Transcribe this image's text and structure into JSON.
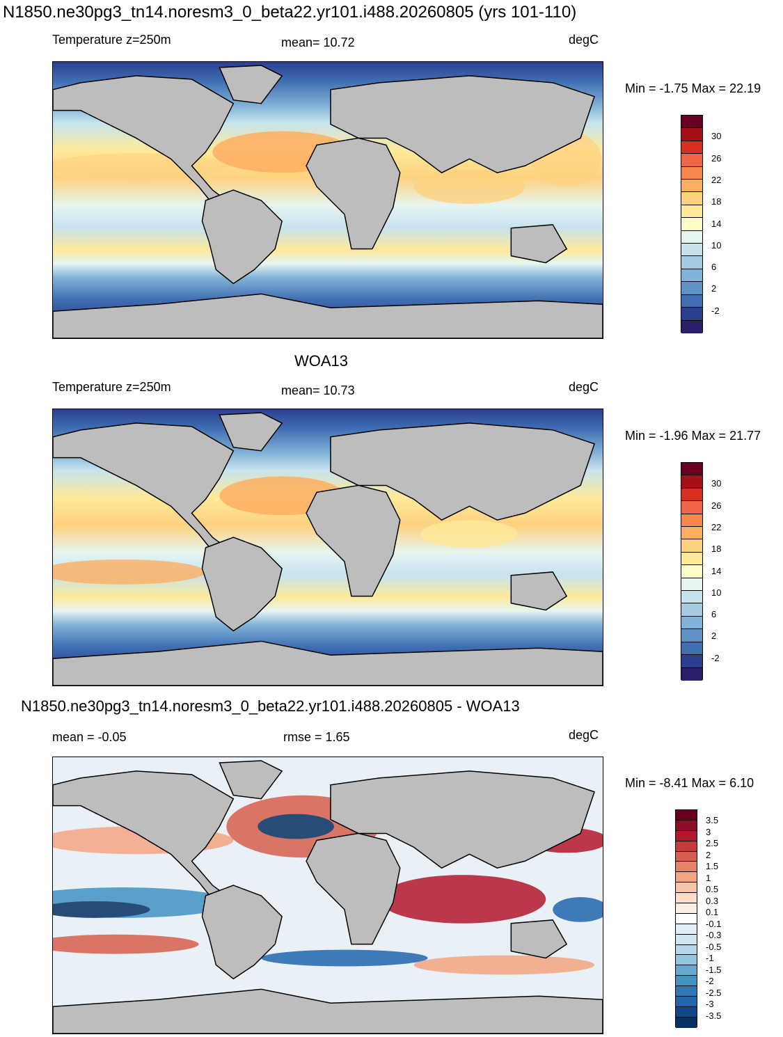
{
  "page_title": "N1850.ne30pg3_tn14.noresm3_0_beta22.yr101.i488.20260805 (yrs 101-110)",
  "panels": [
    {
      "heading": "",
      "left_label": "Temperature z=250m",
      "center_label": "mean=  10.72",
      "units": "degC",
      "minmax": "Min =  -1.75 Max =  22.19",
      "ticks": [
        "30",
        "26",
        "22",
        "18",
        "14",
        "10",
        "6",
        "2",
        "-2"
      ],
      "colors": [
        "#67001f",
        "#a50f15",
        "#d7301f",
        "#ef6548",
        "#f7874b",
        "#fdae61",
        "#fdd27f",
        "#fee99a",
        "#fffbc8",
        "#e6f5f1",
        "#c6e3ee",
        "#a5cbe3",
        "#83b3d8",
        "#5f93c6",
        "#3f6fb2",
        "#2c3f8f",
        "#2a1f6b"
      ],
      "field": "temperature"
    },
    {
      "heading": "WOA13",
      "left_label": "Temperature z=250m",
      "center_label": "mean=  10.73",
      "units": "degC",
      "minmax": "Min =  -1.96 Max =  21.77",
      "ticks": [
        "30",
        "26",
        "22",
        "18",
        "14",
        "10",
        "6",
        "2",
        "-2"
      ],
      "colors": [
        "#67001f",
        "#a50f15",
        "#d7301f",
        "#ef6548",
        "#f7874b",
        "#fdae61",
        "#fdd27f",
        "#fee99a",
        "#fffbc8",
        "#e6f5f1",
        "#c6e3ee",
        "#a5cbe3",
        "#83b3d8",
        "#5f93c6",
        "#3f6fb2",
        "#2c3f8f",
        "#2a1f6b"
      ],
      "field": "temperature"
    },
    {
      "heading": "N1850.ne30pg3_tn14.noresm3_0_beta22.yr101.i488.20260805 - WOA13",
      "left_label": "mean =  -0.05",
      "center_label": "rmse =   1.65",
      "units": "degC",
      "minmax": "Min =  -8.41 Max =   6.10",
      "ticks": [
        "3.5",
        "3",
        "2.5",
        "2",
        "1.5",
        "1",
        "0.5",
        "0.3",
        "0.1",
        "-0.1",
        "-0.3",
        "-0.5",
        "-1",
        "-1.5",
        "-2",
        "-2.5",
        "-3",
        "-3.5"
      ],
      "colors": [
        "#67001f",
        "#8c0d25",
        "#b2182b",
        "#c43c3c",
        "#d6604d",
        "#e58268",
        "#f4a582",
        "#f8c4a8",
        "#fddbc7",
        "#fbeee6",
        "#ffffff",
        "#e3eef6",
        "#d1e5f0",
        "#b7d6ea",
        "#92c5de",
        "#6aa9cf",
        "#4393c3",
        "#2f79b5",
        "#2166ac",
        "#11488c",
        "#053061"
      ],
      "field": "difference"
    }
  ]
}
